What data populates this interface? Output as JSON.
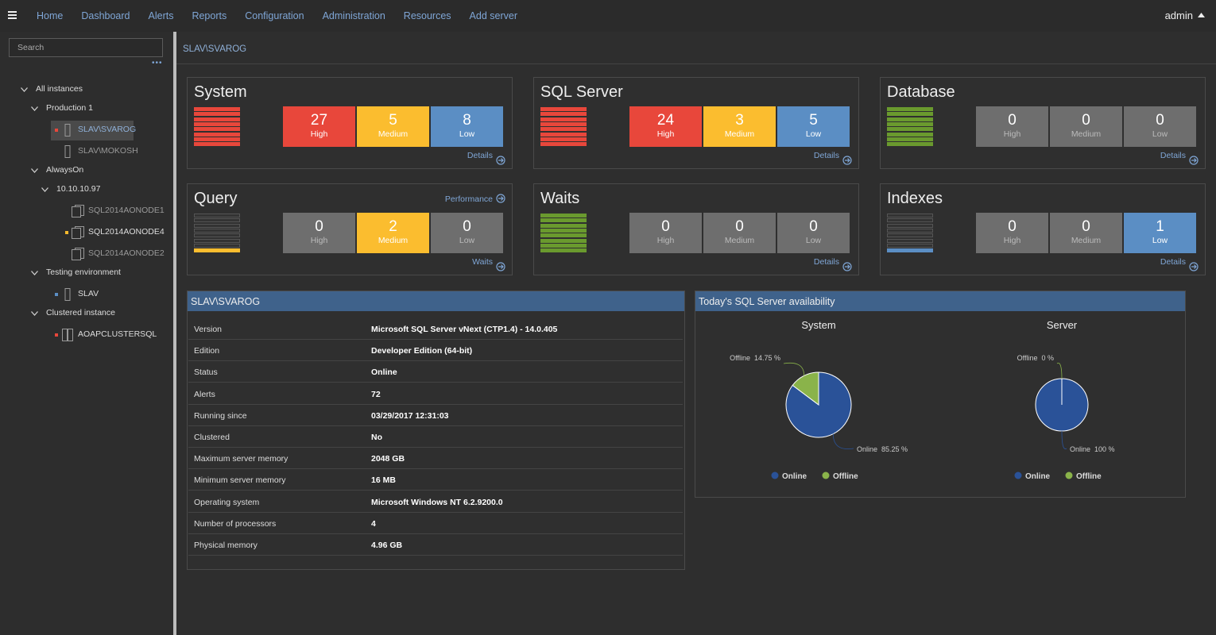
{
  "nav": {
    "items": [
      "Home",
      "Dashboard",
      "Alerts",
      "Reports",
      "Configuration",
      "Administration",
      "Resources",
      "Add server"
    ],
    "user": "admin"
  },
  "sidebar": {
    "search_placeholder": "Search",
    "tree": [
      {
        "label": "All instances",
        "children": [
          {
            "label": "Production 1",
            "children": [
              {
                "label": "SLAV\\SVAROG",
                "status": "#e8473b",
                "icon": "server",
                "selected": true
              },
              {
                "label": "SLAV\\MOKOSH",
                "icon": "server"
              }
            ]
          },
          {
            "label": "AlwaysOn",
            "children": [
              {
                "label": "10.10.10.97",
                "children": [
                  {
                    "label": "SQL2014AONODE1",
                    "icon": "database"
                  },
                  {
                    "label": "SQL2014AONODE4",
                    "status": "#f5b92e",
                    "icon": "database"
                  },
                  {
                    "label": "SQL2014AONODE2",
                    "icon": "database"
                  }
                ]
              }
            ]
          },
          {
            "label": "Testing environment",
            "children": [
              {
                "label": "SLAV",
                "status": "#5b8ec4",
                "icon": "server"
              }
            ]
          },
          {
            "label": "Clustered instance",
            "children": [
              {
                "label": "AOAPCLUSTERSQL",
                "status": "#e8473b",
                "icon": "cluster"
              }
            ]
          }
        ]
      }
    ]
  },
  "breadcrumb": "SLAV\\SVAROG",
  "severity_colors": [
    "#e8473b",
    "#fbbd2f",
    "#5b8ec4"
  ],
  "zero_color": "#6e6e6e",
  "tiles": [
    {
      "title": "System",
      "indicator": {
        "color": "#e8473b",
        "level": "full"
      },
      "counts": [
        {
          "value": 27,
          "label": "High"
        },
        {
          "value": 5,
          "label": "Medium"
        },
        {
          "value": 8,
          "label": "Low"
        }
      ],
      "link": "Details"
    },
    {
      "title": "SQL Server",
      "indicator": {
        "color": "#e8473b",
        "level": "full"
      },
      "counts": [
        {
          "value": 24,
          "label": "High"
        },
        {
          "value": 3,
          "label": "Medium"
        },
        {
          "value": 5,
          "label": "Low"
        }
      ],
      "link": "Details"
    },
    {
      "title": "Database",
      "indicator": {
        "color": "#6a9a2e",
        "level": "full"
      },
      "counts": [
        {
          "value": 0,
          "label": "High"
        },
        {
          "value": 0,
          "label": "Medium"
        },
        {
          "value": 0,
          "label": "Low"
        }
      ],
      "link": "Details"
    },
    {
      "title": "Query",
      "header_link": "Performance",
      "indicator": {
        "color": "#fbbd2f",
        "level": "low"
      },
      "counts": [
        {
          "value": 0,
          "label": "High"
        },
        {
          "value": 2,
          "label": "Medium"
        },
        {
          "value": 0,
          "label": "Low"
        }
      ],
      "link": "Waits"
    },
    {
      "title": "Waits",
      "indicator": {
        "color": "#6a9a2e",
        "level": "full"
      },
      "counts": [
        {
          "value": 0,
          "label": "High"
        },
        {
          "value": 0,
          "label": "Medium"
        },
        {
          "value": 0,
          "label": "Low"
        }
      ],
      "link": "Details"
    },
    {
      "title": "Indexes",
      "indicator": {
        "color": "#5b8ec4",
        "level": "low"
      },
      "counts": [
        {
          "value": 0,
          "label": "High"
        },
        {
          "value": 0,
          "label": "Medium"
        },
        {
          "value": 1,
          "label": "Low"
        }
      ],
      "link": "Details"
    }
  ],
  "info": {
    "title": "SLAV\\SVAROG",
    "rows": [
      [
        "Version",
        "Microsoft SQL Server vNext (CTP1.4) - 14.0.405"
      ],
      [
        "Edition",
        "Developer Edition (64-bit)"
      ],
      [
        "Status",
        "Online"
      ],
      [
        "Alerts",
        72
      ],
      [
        "Running since",
        "03/29/2017 12:31:03"
      ],
      [
        "Clustered",
        "No"
      ],
      [
        "Maximum server memory",
        "2048 GB"
      ],
      [
        "Minimum server memory",
        "16 MB"
      ],
      [
        "Operating system",
        "Microsoft Windows NT 6.2.9200.0"
      ],
      [
        "Number of processors",
        4
      ],
      [
        "Physical memory",
        "4.96 GB"
      ]
    ]
  },
  "availability": {
    "title": "Today's SQL Server availability",
    "charts": [
      {
        "type": "pie",
        "title": "System",
        "categories": [
          "Online",
          "Offline"
        ],
        "values": [
          85.25,
          14.75
        ],
        "value_labels": [
          "85.25 %",
          "14.75 %"
        ],
        "colors": [
          "#2a5298",
          "#8ab34a"
        ],
        "legend": true
      },
      {
        "type": "pie",
        "title": "Server",
        "categories": [
          "Online",
          "Offline"
        ],
        "values": [
          100,
          0
        ],
        "value_labels": [
          "100 %",
          "0 %"
        ],
        "colors": [
          "#2a5298",
          "#8ab34a"
        ],
        "legend": true
      }
    ]
  }
}
